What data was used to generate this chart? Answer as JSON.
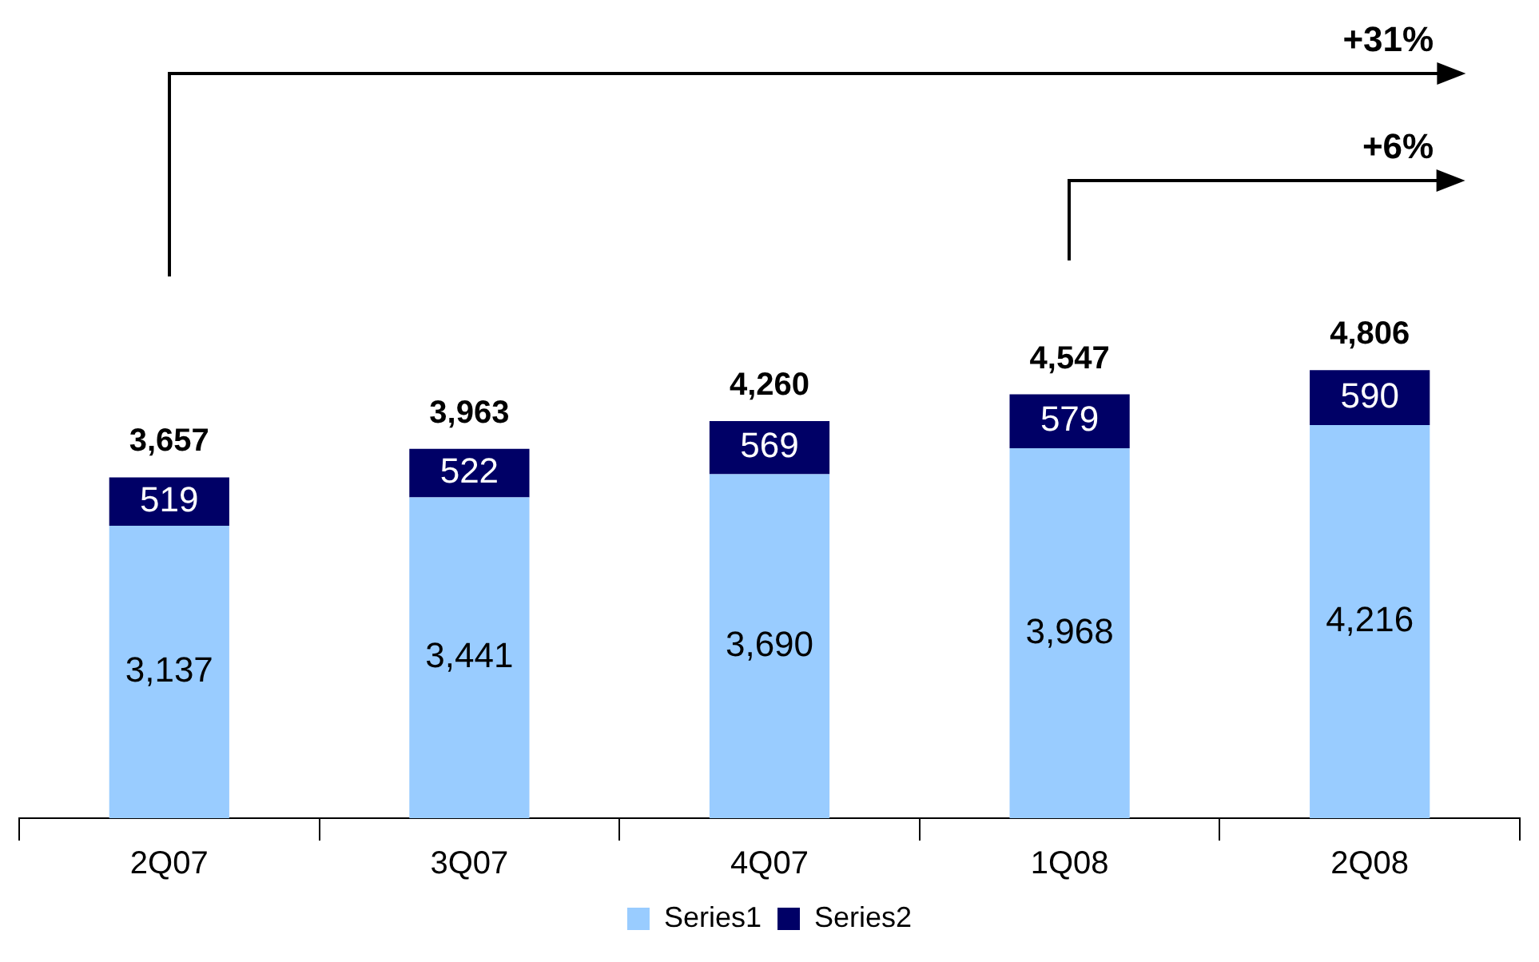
{
  "chart_data": {
    "type": "bar",
    "stacked": true,
    "categories": [
      "2Q07",
      "3Q07",
      "4Q07",
      "1Q08",
      "2Q08"
    ],
    "series": [
      {
        "name": "Series1",
        "color": "#99ccff",
        "values": [
          3137,
          3441,
          3690,
          3968,
          4216
        ],
        "value_labels": [
          "3,137",
          "3,441",
          "3,690",
          "3,968",
          "4,216"
        ]
      },
      {
        "name": "Series2",
        "color": "#000066",
        "values": [
          519,
          522,
          569,
          579,
          590
        ],
        "value_labels": [
          "519",
          "522",
          "569",
          "579",
          "590"
        ]
      }
    ],
    "totals": [
      "3,657",
      "3,963",
      "4,260",
      "4,547",
      "4,806"
    ],
    "annotations": [
      "+31%",
      "+6%"
    ],
    "legend": "bottom"
  }
}
